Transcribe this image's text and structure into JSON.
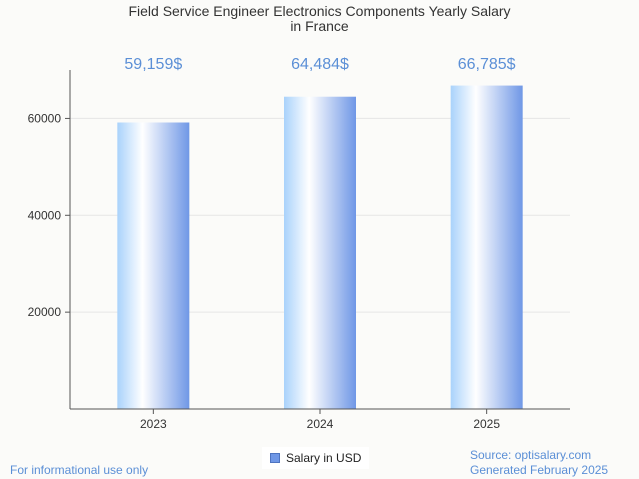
{
  "chart_data": {
    "type": "bar",
    "title_lines": [
      "Field Service Engineer Electronics Components Yearly Salary",
      "in France"
    ],
    "categories": [
      "2023",
      "2024",
      "2025"
    ],
    "series": [
      {
        "name": "Salary in USD",
        "values": [
          59159,
          64484,
          66785
        ],
        "data_labels": [
          "59,159$",
          "64,484$",
          "66,785$"
        ]
      }
    ],
    "yticks": [
      20000,
      40000,
      60000
    ],
    "ylim": [
      0,
      70000
    ],
    "grid": true,
    "legend_position": "bottom-center",
    "colors": {
      "bar_edge": "#6f97e6",
      "bar_light": "#ffffff",
      "bar_left": "#a9d2fb",
      "label": "#5b8fd6",
      "grid": "#e6e6e6",
      "axis": "#555555"
    }
  },
  "footer": {
    "disclaimer": "For informational use only",
    "source": "Source: optisalary.com",
    "generated": "Generated February 2025"
  }
}
